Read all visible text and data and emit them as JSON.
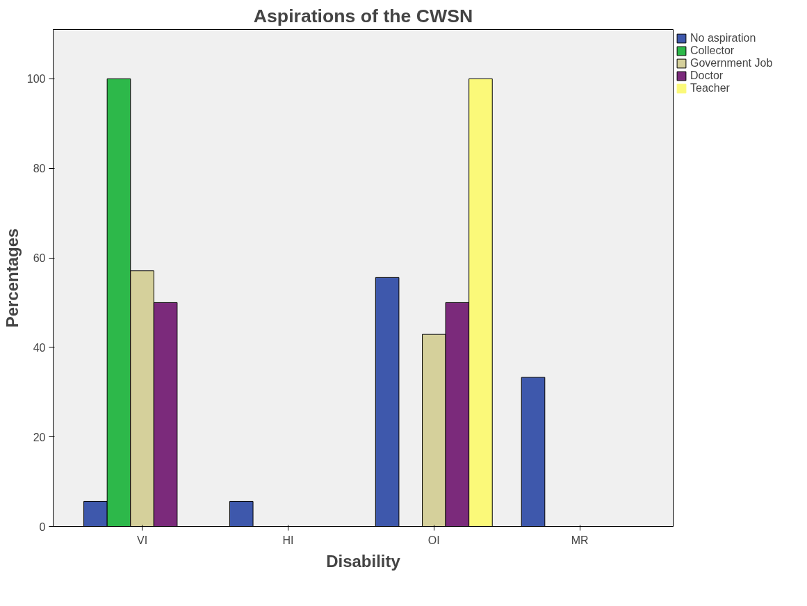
{
  "chart_data": {
    "type": "bar",
    "title": "Aspirations of the CWSN",
    "xlabel": "Disability",
    "ylabel": "Percentages",
    "categories": [
      "VI",
      "HI",
      "OI",
      "MR"
    ],
    "series": [
      {
        "name": "No aspiration",
        "color": "#3e58ac",
        "values": [
          5.6,
          5.6,
          55.6,
          33.3
        ]
      },
      {
        "name": "Collector",
        "color": "#2db84a",
        "values": [
          100,
          0,
          0,
          0
        ]
      },
      {
        "name": "Government Job",
        "color": "#d5d09b",
        "values": [
          57.1,
          0,
          42.9,
          0
        ]
      },
      {
        "name": "Doctor",
        "color": "#7b2a7b",
        "values": [
          50,
          0,
          50,
          0
        ]
      },
      {
        "name": "Teacher",
        "color": "#fbf979",
        "values": [
          0,
          0,
          100,
          0
        ]
      }
    ],
    "ylim": [
      0,
      111
    ],
    "yticks": [
      0,
      20,
      40,
      60,
      80,
      100
    ],
    "grid": false,
    "legend": "top right"
  }
}
